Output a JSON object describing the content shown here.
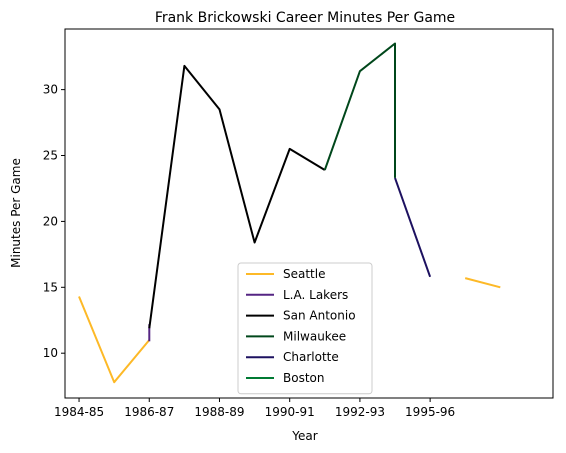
{
  "chart_data": {
    "type": "line",
    "title": "Frank Brickowski Career Minutes Per Game",
    "xlabel": "Year",
    "ylabel": "Minutes Per Game",
    "x_ticks": [
      "1984-85",
      "1986-87",
      "1988-89",
      "1990-91",
      "1992-93",
      "1995-96"
    ],
    "y_ticks": [
      10,
      15,
      20,
      25,
      30
    ],
    "xlim": [
      1983.6,
      1997.5
    ],
    "ylim": [
      6.6,
      34.6
    ],
    "grid": false,
    "legend_placement": "lower center",
    "series": [
      {
        "name": "Seattle",
        "color": "#FDB927",
        "points": [
          [
            1984,
            14.3
          ],
          [
            1985,
            7.8
          ],
          [
            1986,
            11.0
          ]
        ],
        "segments": [
          [
            [
              1984,
              14.3
            ],
            [
              1985,
              7.8
            ],
            [
              1986,
              11.0
            ]
          ],
          [
            [
              1995,
              15.7
            ],
            [
              1996,
              15.0
            ]
          ]
        ]
      },
      {
        "name": "L.A. Lakers",
        "color": "#552583",
        "segments": [
          [
            [
              1986,
              10.9
            ],
            [
              1986,
              12.2
            ]
          ]
        ]
      },
      {
        "name": "San Antonio",
        "color": "#000000",
        "segments": [
          [
            [
              1986,
              11.9
            ],
            [
              1987,
              31.8
            ],
            [
              1988,
              28.5
            ],
            [
              1989,
              18.4
            ],
            [
              1990,
              25.5
            ],
            [
              1991,
              23.9
            ]
          ]
        ]
      },
      {
        "name": "Milwaukee",
        "color": "#00471B",
        "segments": [
          [
            [
              1991,
              23.9
            ],
            [
              1992,
              31.4
            ],
            [
              1993,
              33.5
            ],
            [
              1993,
              23.3
            ]
          ]
        ]
      },
      {
        "name": "Charlotte",
        "color": "#1D1160",
        "segments": [
          [
            [
              1993,
              23.3
            ],
            [
              1994,
              15.8
            ]
          ]
        ]
      },
      {
        "name": "Boston",
        "color": "#007A33",
        "segments": []
      }
    ]
  }
}
